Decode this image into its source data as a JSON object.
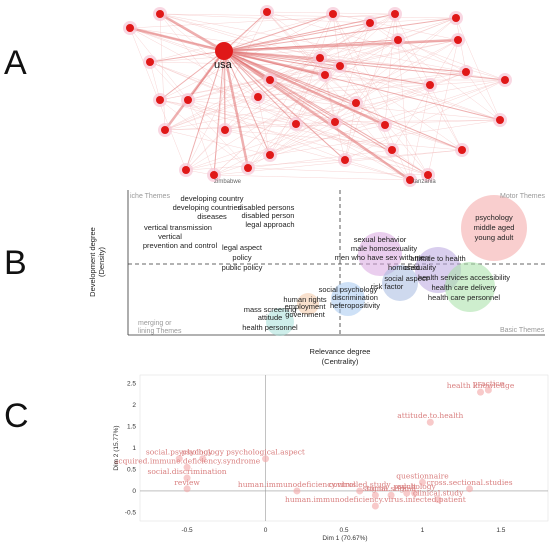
{
  "panels": {
    "a": "A",
    "b": "B",
    "c": "C"
  },
  "network": {
    "hub_label": "usa",
    "bottom_labels": [
      "zimbabwe",
      "tanzania"
    ]
  },
  "chart_data": [
    {
      "type": "scatter",
      "panel": "B",
      "xlabel": "Relevance degree\n(Centrality)",
      "ylabel": "Development degree\n(Density)",
      "quadrants": {
        "top_left": "Niche Themes",
        "top_right": "Motor Themes",
        "bottom_left": "Emerging or\nDeclining Themes",
        "bottom_right": "Basic Themes"
      },
      "clusters": [
        {
          "labels": [
            "developing country",
            "developing countries",
            "diseases"
          ],
          "color": "#cccccc"
        },
        {
          "labels": [
            "disabled persons",
            "disabled person",
            "legal approach"
          ],
          "color": "#cccccc"
        },
        {
          "labels": [
            "vertical transmission",
            "vertical",
            "prevention and control"
          ],
          "color": "#cccccc"
        },
        {
          "labels": [
            "legal aspect",
            "policy",
            "public policy"
          ],
          "color": "#cccccc"
        },
        {
          "labels": [
            "psychology",
            "middle aged",
            "young adult"
          ],
          "color": "#f4a6a6"
        },
        {
          "labels": [
            "sexual behavior",
            "male homosexuality",
            "men who have sex with men"
          ],
          "color": "#d9a6e0"
        },
        {
          "labels": [
            "attitude to health",
            "homosexuality",
            "child"
          ],
          "color": "#b9a6e0"
        },
        {
          "labels": [
            "health services accessibility",
            "health care delivery",
            "health care personnel"
          ],
          "color": "#a6e0a6"
        },
        {
          "labels": [
            "social aspect",
            "risk factor"
          ],
          "color": "#a6b9e0"
        },
        {
          "labels": [
            "social psychology",
            "discrimination",
            "heteropositivity"
          ],
          "color": "#a6c9f0"
        },
        {
          "labels": [
            "human rights",
            "employment",
            "government"
          ],
          "color": "#f4c9a6"
        },
        {
          "labels": [
            "mass screening",
            "attitude",
            "health personnel"
          ],
          "color": "#a6e0d9"
        }
      ]
    },
    {
      "type": "scatter",
      "panel": "C",
      "xlabel": "Dim 1 (70.67%)",
      "ylabel": "Dim 2 (15.77%)",
      "x_ticks": [
        "-0.5",
        "0",
        "0.5",
        "1",
        "1.5"
      ],
      "y_ticks": [
        "2.5",
        "2",
        "1.5",
        "1",
        "0.5",
        "0",
        "-0.5"
      ],
      "points": [
        {
          "label": "health knowledge",
          "x": 1.37,
          "y": 2.3
        },
        {
          "label": "practice",
          "x": 1.42,
          "y": 2.35
        },
        {
          "label": "attitude.to.health",
          "x": 1.05,
          "y": 1.6
        },
        {
          "label": "social.psychology",
          "x": -0.55,
          "y": 0.75
        },
        {
          "label": "psychology",
          "x": -0.4,
          "y": 0.75
        },
        {
          "label": "psychological.aspect",
          "x": 0.0,
          "y": 0.75
        },
        {
          "label": "acquired.immune.deficiency.syndrome",
          "x": -0.5,
          "y": 0.55
        },
        {
          "label": "social.discrimination",
          "x": -0.5,
          "y": 0.3
        },
        {
          "label": "review",
          "x": -0.5,
          "y": 0.05
        },
        {
          "label": "human.immunodeficiency.virus",
          "x": 0.2,
          "y": 0.0
        },
        {
          "label": "questionnaire",
          "x": 1.0,
          "y": 0.2
        },
        {
          "label": "cross.sectional.studies",
          "x": 1.3,
          "y": 0.05
        },
        {
          "label": "controlled.study",
          "x": 0.6,
          "y": 0.0
        },
        {
          "label": "psychology",
          "x": 0.95,
          "y": -0.05
        },
        {
          "label": "stigma",
          "x": 0.7,
          "y": -0.1
        },
        {
          "label": "social.stigma",
          "x": 0.8,
          "y": -0.1
        },
        {
          "label": "clinical.study",
          "x": 1.1,
          "y": -0.2
        },
        {
          "label": "adult",
          "x": 0.9,
          "y": -0.05
        },
        {
          "label": "human.immunodeficiency.virus.infected.patient",
          "x": 0.7,
          "y": -0.35
        }
      ],
      "xlim": [
        -0.8,
        1.8
      ],
      "ylim": [
        -0.7,
        2.7
      ]
    }
  ]
}
